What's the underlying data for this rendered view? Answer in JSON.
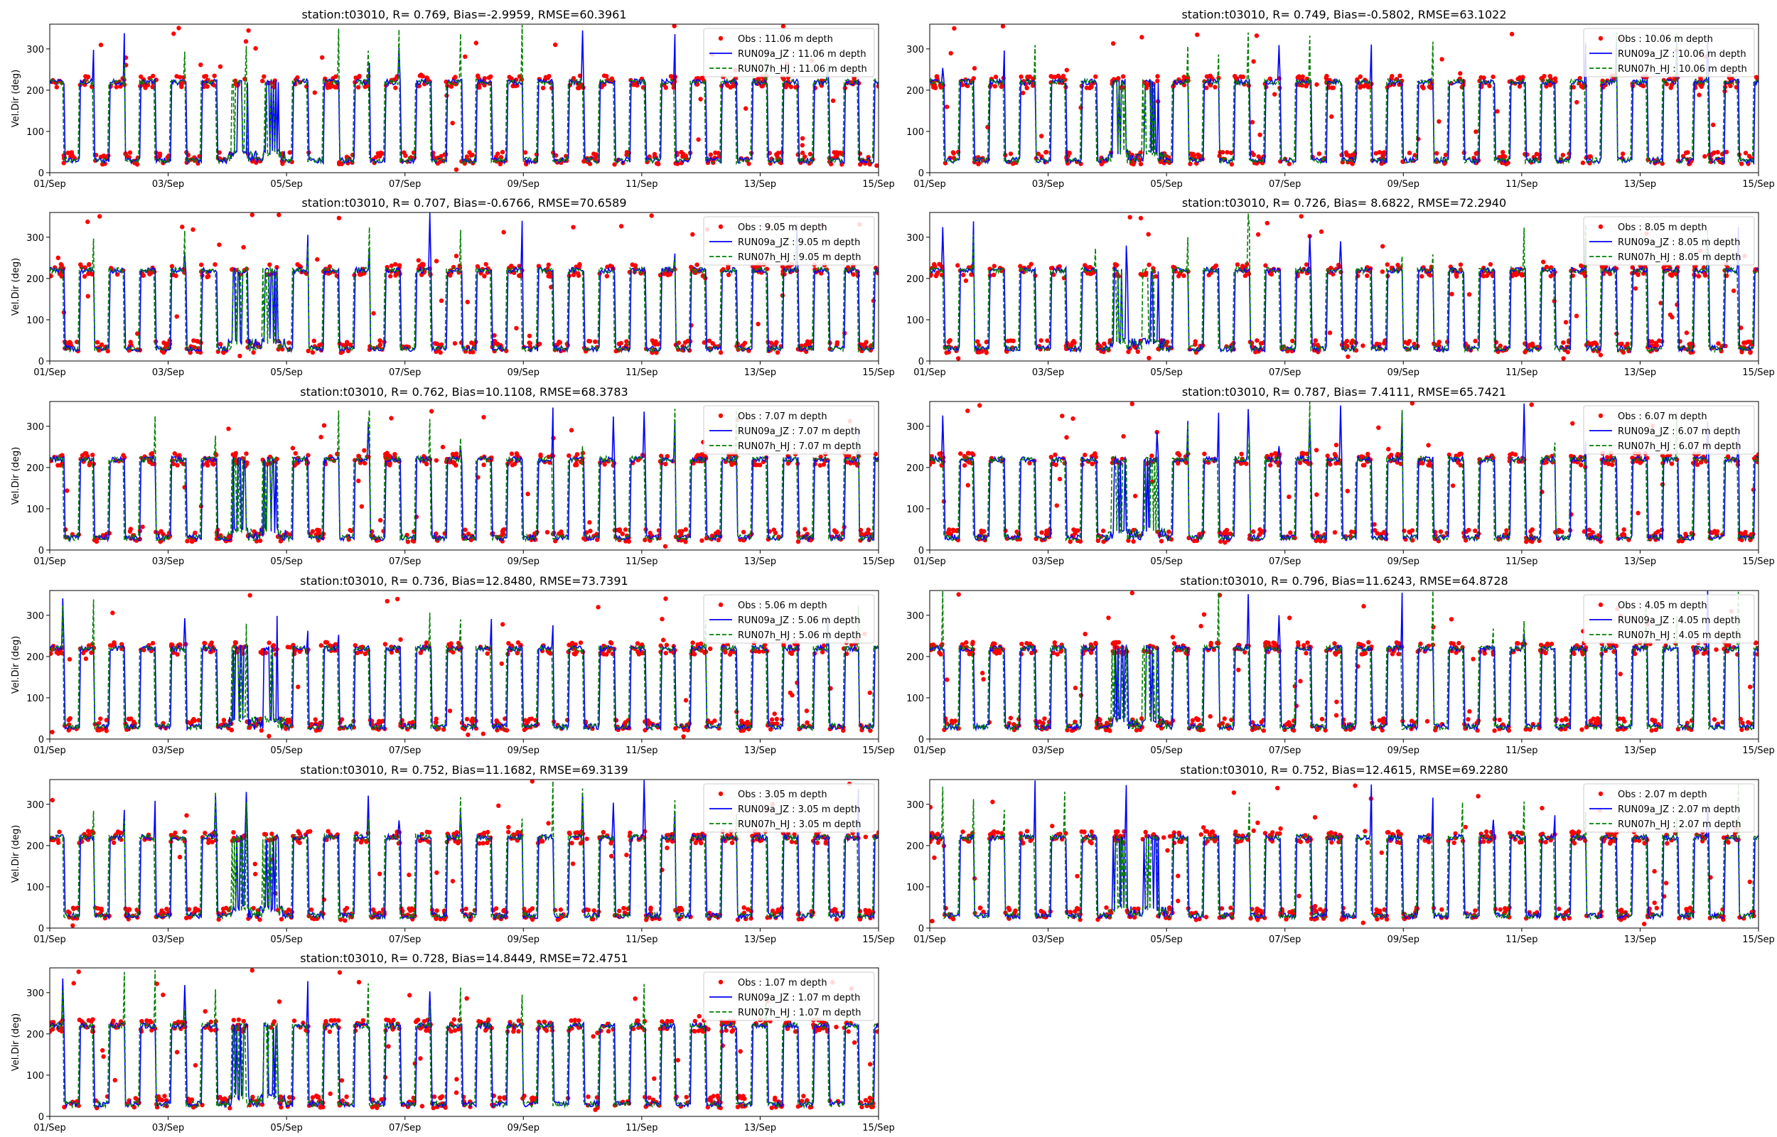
{
  "chart_data": [
    {
      "type": "line",
      "title": "station:t03010, R= 0.769, Bias=-2.9959, RMSE=60.3961",
      "ylabel": "Vel.Dir (deg)",
      "xlabel": "",
      "ylim": [
        0,
        360
      ],
      "xlim_days": [
        0,
        14
      ],
      "x_ticks": [
        "01/Sep",
        "03/Sep",
        "05/Sep",
        "07/Sep",
        "09/Sep",
        "11/Sep",
        "13/Sep",
        "15/Sep"
      ],
      "y_ticks": [
        "0",
        "100",
        "200",
        "300"
      ],
      "legend": "top-right",
      "series": [
        {
          "name": "Obs : 11.06 m depth",
          "style": "points",
          "color": "#ff0000"
        },
        {
          "name": "RUN09a_JZ : 11.06 m depth",
          "style": "solid",
          "color": "#0000ff"
        },
        {
          "name": "RUN07h_HJ : 11.06 m depth",
          "style": "dashed",
          "color": "#008000"
        }
      ]
    },
    {
      "type": "line",
      "title": "station:t03010, R= 0.749, Bias=-0.5802, RMSE=63.1022",
      "ylabel": "",
      "xlabel": "",
      "ylim": [
        0,
        360
      ],
      "xlim_days": [
        0,
        14
      ],
      "x_ticks": [
        "01/Sep",
        "03/Sep",
        "05/Sep",
        "07/Sep",
        "09/Sep",
        "11/Sep",
        "13/Sep",
        "15/Sep"
      ],
      "y_ticks": [
        "0",
        "100",
        "200",
        "300"
      ],
      "legend": "top-right",
      "series": [
        {
          "name": "Obs : 10.06 m depth",
          "style": "points",
          "color": "#ff0000"
        },
        {
          "name": "RUN09a_JZ : 10.06 m depth",
          "style": "solid",
          "color": "#0000ff"
        },
        {
          "name": "RUN07h_HJ : 10.06 m depth",
          "style": "dashed",
          "color": "#008000"
        }
      ]
    },
    {
      "type": "line",
      "title": "station:t03010, R= 0.707, Bias=-0.6766, RMSE=70.6589",
      "ylabel": "Vel.Dir (deg)",
      "xlabel": "",
      "ylim": [
        0,
        360
      ],
      "xlim_days": [
        0,
        14
      ],
      "x_ticks": [
        "01/Sep",
        "03/Sep",
        "05/Sep",
        "07/Sep",
        "09/Sep",
        "11/Sep",
        "13/Sep",
        "15/Sep"
      ],
      "y_ticks": [
        "0",
        "100",
        "200",
        "300"
      ],
      "legend": "top-right",
      "series": [
        {
          "name": "Obs : 9.05 m depth",
          "style": "points",
          "color": "#ff0000"
        },
        {
          "name": "RUN09a_JZ : 9.05 m depth",
          "style": "solid",
          "color": "#0000ff"
        },
        {
          "name": "RUN07h_HJ : 9.05 m depth",
          "style": "dashed",
          "color": "#008000"
        }
      ]
    },
    {
      "type": "line",
      "title": "station:t03010, R= 0.726, Bias= 8.6822, RMSE=72.2940",
      "ylabel": "",
      "xlabel": "",
      "ylim": [
        0,
        360
      ],
      "xlim_days": [
        0,
        14
      ],
      "x_ticks": [
        "01/Sep",
        "03/Sep",
        "05/Sep",
        "07/Sep",
        "09/Sep",
        "11/Sep",
        "13/Sep",
        "15/Sep"
      ],
      "y_ticks": [
        "0",
        "100",
        "200",
        "300"
      ],
      "legend": "top-right",
      "series": [
        {
          "name": "Obs : 8.05 m depth",
          "style": "points",
          "color": "#ff0000"
        },
        {
          "name": "RUN09a_JZ : 8.05 m depth",
          "style": "solid",
          "color": "#0000ff"
        },
        {
          "name": "RUN07h_HJ : 8.05 m depth",
          "style": "dashed",
          "color": "#008000"
        }
      ]
    },
    {
      "type": "line",
      "title": "station:t03010, R= 0.762, Bias=10.1108, RMSE=68.3783",
      "ylabel": "Vel.Dir (deg)",
      "xlabel": "",
      "ylim": [
        0,
        360
      ],
      "xlim_days": [
        0,
        14
      ],
      "x_ticks": [
        "01/Sep",
        "03/Sep",
        "05/Sep",
        "07/Sep",
        "09/Sep",
        "11/Sep",
        "13/Sep",
        "15/Sep"
      ],
      "y_ticks": [
        "0",
        "100",
        "200",
        "300"
      ],
      "legend": "top-right",
      "series": [
        {
          "name": "Obs : 7.07 m depth",
          "style": "points",
          "color": "#ff0000"
        },
        {
          "name": "RUN09a_JZ : 7.07 m depth",
          "style": "solid",
          "color": "#0000ff"
        },
        {
          "name": "RUN07h_HJ : 7.07 m depth",
          "style": "dashed",
          "color": "#008000"
        }
      ]
    },
    {
      "type": "line",
      "title": "station:t03010, R= 0.787, Bias= 7.4111, RMSE=65.7421",
      "ylabel": "",
      "xlabel": "",
      "ylim": [
        0,
        360
      ],
      "xlim_days": [
        0,
        14
      ],
      "x_ticks": [
        "01/Sep",
        "03/Sep",
        "05/Sep",
        "07/Sep",
        "09/Sep",
        "11/Sep",
        "13/Sep",
        "15/Sep"
      ],
      "y_ticks": [
        "0",
        "100",
        "200",
        "300"
      ],
      "legend": "top-right",
      "series": [
        {
          "name": "Obs : 6.07 m depth",
          "style": "points",
          "color": "#ff0000"
        },
        {
          "name": "RUN09a_JZ : 6.07 m depth",
          "style": "solid",
          "color": "#0000ff"
        },
        {
          "name": "RUN07h_HJ : 6.07 m depth",
          "style": "dashed",
          "color": "#008000"
        }
      ]
    },
    {
      "type": "line",
      "title": "station:t03010, R= 0.736, Bias=12.8480, RMSE=73.7391",
      "ylabel": "Vel.Dir (deg)",
      "xlabel": "",
      "ylim": [
        0,
        360
      ],
      "xlim_days": [
        0,
        14
      ],
      "x_ticks": [
        "01/Sep",
        "03/Sep",
        "05/Sep",
        "07/Sep",
        "09/Sep",
        "11/Sep",
        "13/Sep",
        "15/Sep"
      ],
      "y_ticks": [
        "0",
        "100",
        "200",
        "300"
      ],
      "legend": "top-right",
      "series": [
        {
          "name": "Obs : 5.06 m depth",
          "style": "points",
          "color": "#ff0000"
        },
        {
          "name": "RUN09a_JZ : 5.06 m depth",
          "style": "solid",
          "color": "#0000ff"
        },
        {
          "name": "RUN07h_HJ : 5.06 m depth",
          "style": "dashed",
          "color": "#008000"
        }
      ]
    },
    {
      "type": "line",
      "title": "station:t03010, R= 0.796, Bias=11.6243, RMSE=64.8728",
      "ylabel": "",
      "xlabel": "",
      "ylim": [
        0,
        360
      ],
      "xlim_days": [
        0,
        14
      ],
      "x_ticks": [
        "01/Sep",
        "03/Sep",
        "05/Sep",
        "07/Sep",
        "09/Sep",
        "11/Sep",
        "13/Sep",
        "15/Sep"
      ],
      "y_ticks": [
        "0",
        "100",
        "200",
        "300"
      ],
      "legend": "top-right",
      "series": [
        {
          "name": "Obs : 4.05 m depth",
          "style": "points",
          "color": "#ff0000"
        },
        {
          "name": "RUN09a_JZ : 4.05 m depth",
          "style": "solid",
          "color": "#0000ff"
        },
        {
          "name": "RUN07h_HJ : 4.05 m depth",
          "style": "dashed",
          "color": "#008000"
        }
      ]
    },
    {
      "type": "line",
      "title": "station:t03010, R= 0.752, Bias=11.1682, RMSE=69.3139",
      "ylabel": "Vel.Dir (deg)",
      "xlabel": "",
      "ylim": [
        0,
        360
      ],
      "xlim_days": [
        0,
        14
      ],
      "x_ticks": [
        "01/Sep",
        "03/Sep",
        "05/Sep",
        "07/Sep",
        "09/Sep",
        "11/Sep",
        "13/Sep",
        "15/Sep"
      ],
      "y_ticks": [
        "0",
        "100",
        "200",
        "300"
      ],
      "legend": "top-right",
      "series": [
        {
          "name": "Obs : 3.05 m depth",
          "style": "points",
          "color": "#ff0000"
        },
        {
          "name": "RUN09a_JZ : 3.05 m depth",
          "style": "solid",
          "color": "#0000ff"
        },
        {
          "name": "RUN07h_HJ : 3.05 m depth",
          "style": "dashed",
          "color": "#008000"
        }
      ]
    },
    {
      "type": "line",
      "title": "station:t03010, R= 0.752, Bias=12.4615, RMSE=69.2280",
      "ylabel": "",
      "xlabel": "",
      "ylim": [
        0,
        360
      ],
      "xlim_days": [
        0,
        14
      ],
      "x_ticks": [
        "01/Sep",
        "03/Sep",
        "05/Sep",
        "07/Sep",
        "09/Sep",
        "11/Sep",
        "13/Sep",
        "15/Sep"
      ],
      "y_ticks": [
        "0",
        "100",
        "200",
        "300"
      ],
      "legend": "top-right",
      "series": [
        {
          "name": "Obs : 2.07 m depth",
          "style": "points",
          "color": "#ff0000"
        },
        {
          "name": "RUN09a_JZ : 2.07 m depth",
          "style": "solid",
          "color": "#0000ff"
        },
        {
          "name": "RUN07h_HJ : 2.07 m depth",
          "style": "dashed",
          "color": "#008000"
        }
      ]
    },
    {
      "type": "line",
      "title": "station:t03010, R= 0.728, Bias=14.8449, RMSE=72.4751",
      "ylabel": "Vel.Dir (deg)",
      "xlabel": "",
      "ylim": [
        0,
        360
      ],
      "xlim_days": [
        0,
        14
      ],
      "x_ticks": [
        "01/Sep",
        "03/Sep",
        "05/Sep",
        "07/Sep",
        "09/Sep",
        "11/Sep",
        "13/Sep",
        "15/Sep"
      ],
      "y_ticks": [
        "0",
        "100",
        "200",
        "300"
      ],
      "legend": "top-right",
      "series": [
        {
          "name": "Obs : 1.07 m depth",
          "style": "points",
          "color": "#ff0000"
        },
        {
          "name": "RUN09a_JZ : 1.07 m depth",
          "style": "solid",
          "color": "#0000ff"
        },
        {
          "name": "RUN07h_HJ : 1.07 m depth",
          "style": "dashed",
          "color": "#008000"
        }
      ]
    }
  ]
}
